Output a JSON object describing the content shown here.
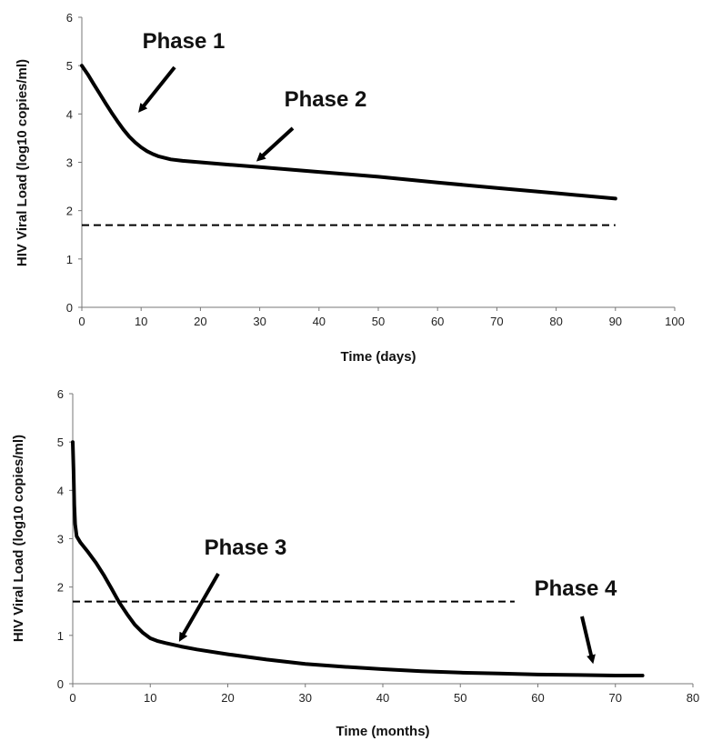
{
  "chart_data": [
    {
      "type": "line",
      "xlabel": "Time (days)",
      "ylabel": "HIV Viral Load (log10 copies/ml)",
      "xlim": [
        0,
        100
      ],
      "ylim": [
        0,
        6
      ],
      "xticks": [
        0,
        10,
        20,
        30,
        40,
        50,
        60,
        70,
        80,
        90,
        100
      ],
      "yticks": [
        0,
        1,
        2,
        3,
        4,
        5,
        6
      ],
      "grid": false,
      "series": [
        {
          "line_style": "solid",
          "x": [
            0,
            1,
            2,
            3,
            4,
            5,
            6,
            7,
            8,
            9,
            10,
            11,
            12,
            13,
            14,
            15,
            17,
            20,
            25,
            30,
            40,
            50,
            60,
            70,
            80,
            90
          ],
          "y": [
            5.0,
            4.82,
            4.62,
            4.42,
            4.22,
            4.03,
            3.85,
            3.68,
            3.53,
            3.41,
            3.31,
            3.23,
            3.17,
            3.12,
            3.09,
            3.06,
            3.03,
            3.0,
            2.95,
            2.9,
            2.8,
            2.7,
            2.58,
            2.47,
            2.36,
            2.25
          ]
        },
        {
          "line_style": "dashed",
          "x": [
            0,
            90
          ],
          "y": [
            1.7,
            1.7
          ]
        }
      ],
      "annotations": [
        {
          "text": "Phase 1",
          "arrow_to": [
            10,
            4.1
          ]
        },
        {
          "text": "Phase 2",
          "arrow_to": [
            30,
            3.08
          ]
        }
      ]
    },
    {
      "type": "line",
      "xlabel": "Time (months)",
      "ylabel": "HIV Viral Load (log10 copies/ml)",
      "xlim": [
        0,
        80
      ],
      "ylim": [
        0,
        6
      ],
      "xticks": [
        0,
        10,
        20,
        30,
        40,
        50,
        60,
        70,
        80
      ],
      "yticks": [
        0,
        1,
        2,
        3,
        4,
        5,
        6
      ],
      "grid": false,
      "series": [
        {
          "line_style": "solid",
          "x": [
            0,
            0.1,
            0.2,
            0.3,
            0.5,
            1,
            2,
            3,
            4,
            5,
            6,
            7,
            8,
            9,
            10,
            11,
            12,
            14,
            16,
            20,
            25,
            30,
            35,
            40,
            45,
            50,
            55,
            60,
            65,
            70,
            73.5
          ],
          "y": [
            5.0,
            4.4,
            3.7,
            3.3,
            3.05,
            2.92,
            2.72,
            2.5,
            2.25,
            1.97,
            1.68,
            1.44,
            1.22,
            1.06,
            0.94,
            0.88,
            0.84,
            0.77,
            0.71,
            0.61,
            0.5,
            0.41,
            0.35,
            0.3,
            0.26,
            0.23,
            0.21,
            0.19,
            0.18,
            0.17,
            0.17
          ]
        },
        {
          "line_style": "dashed",
          "x": [
            0,
            57
          ],
          "y": [
            1.7,
            1.7
          ]
        }
      ],
      "annotations": [
        {
          "text": "Phase 3",
          "arrow_to": [
            14,
            0.95
          ]
        },
        {
          "text": "Phase 4",
          "arrow_to": [
            67,
            0.5
          ]
        }
      ]
    }
  ]
}
